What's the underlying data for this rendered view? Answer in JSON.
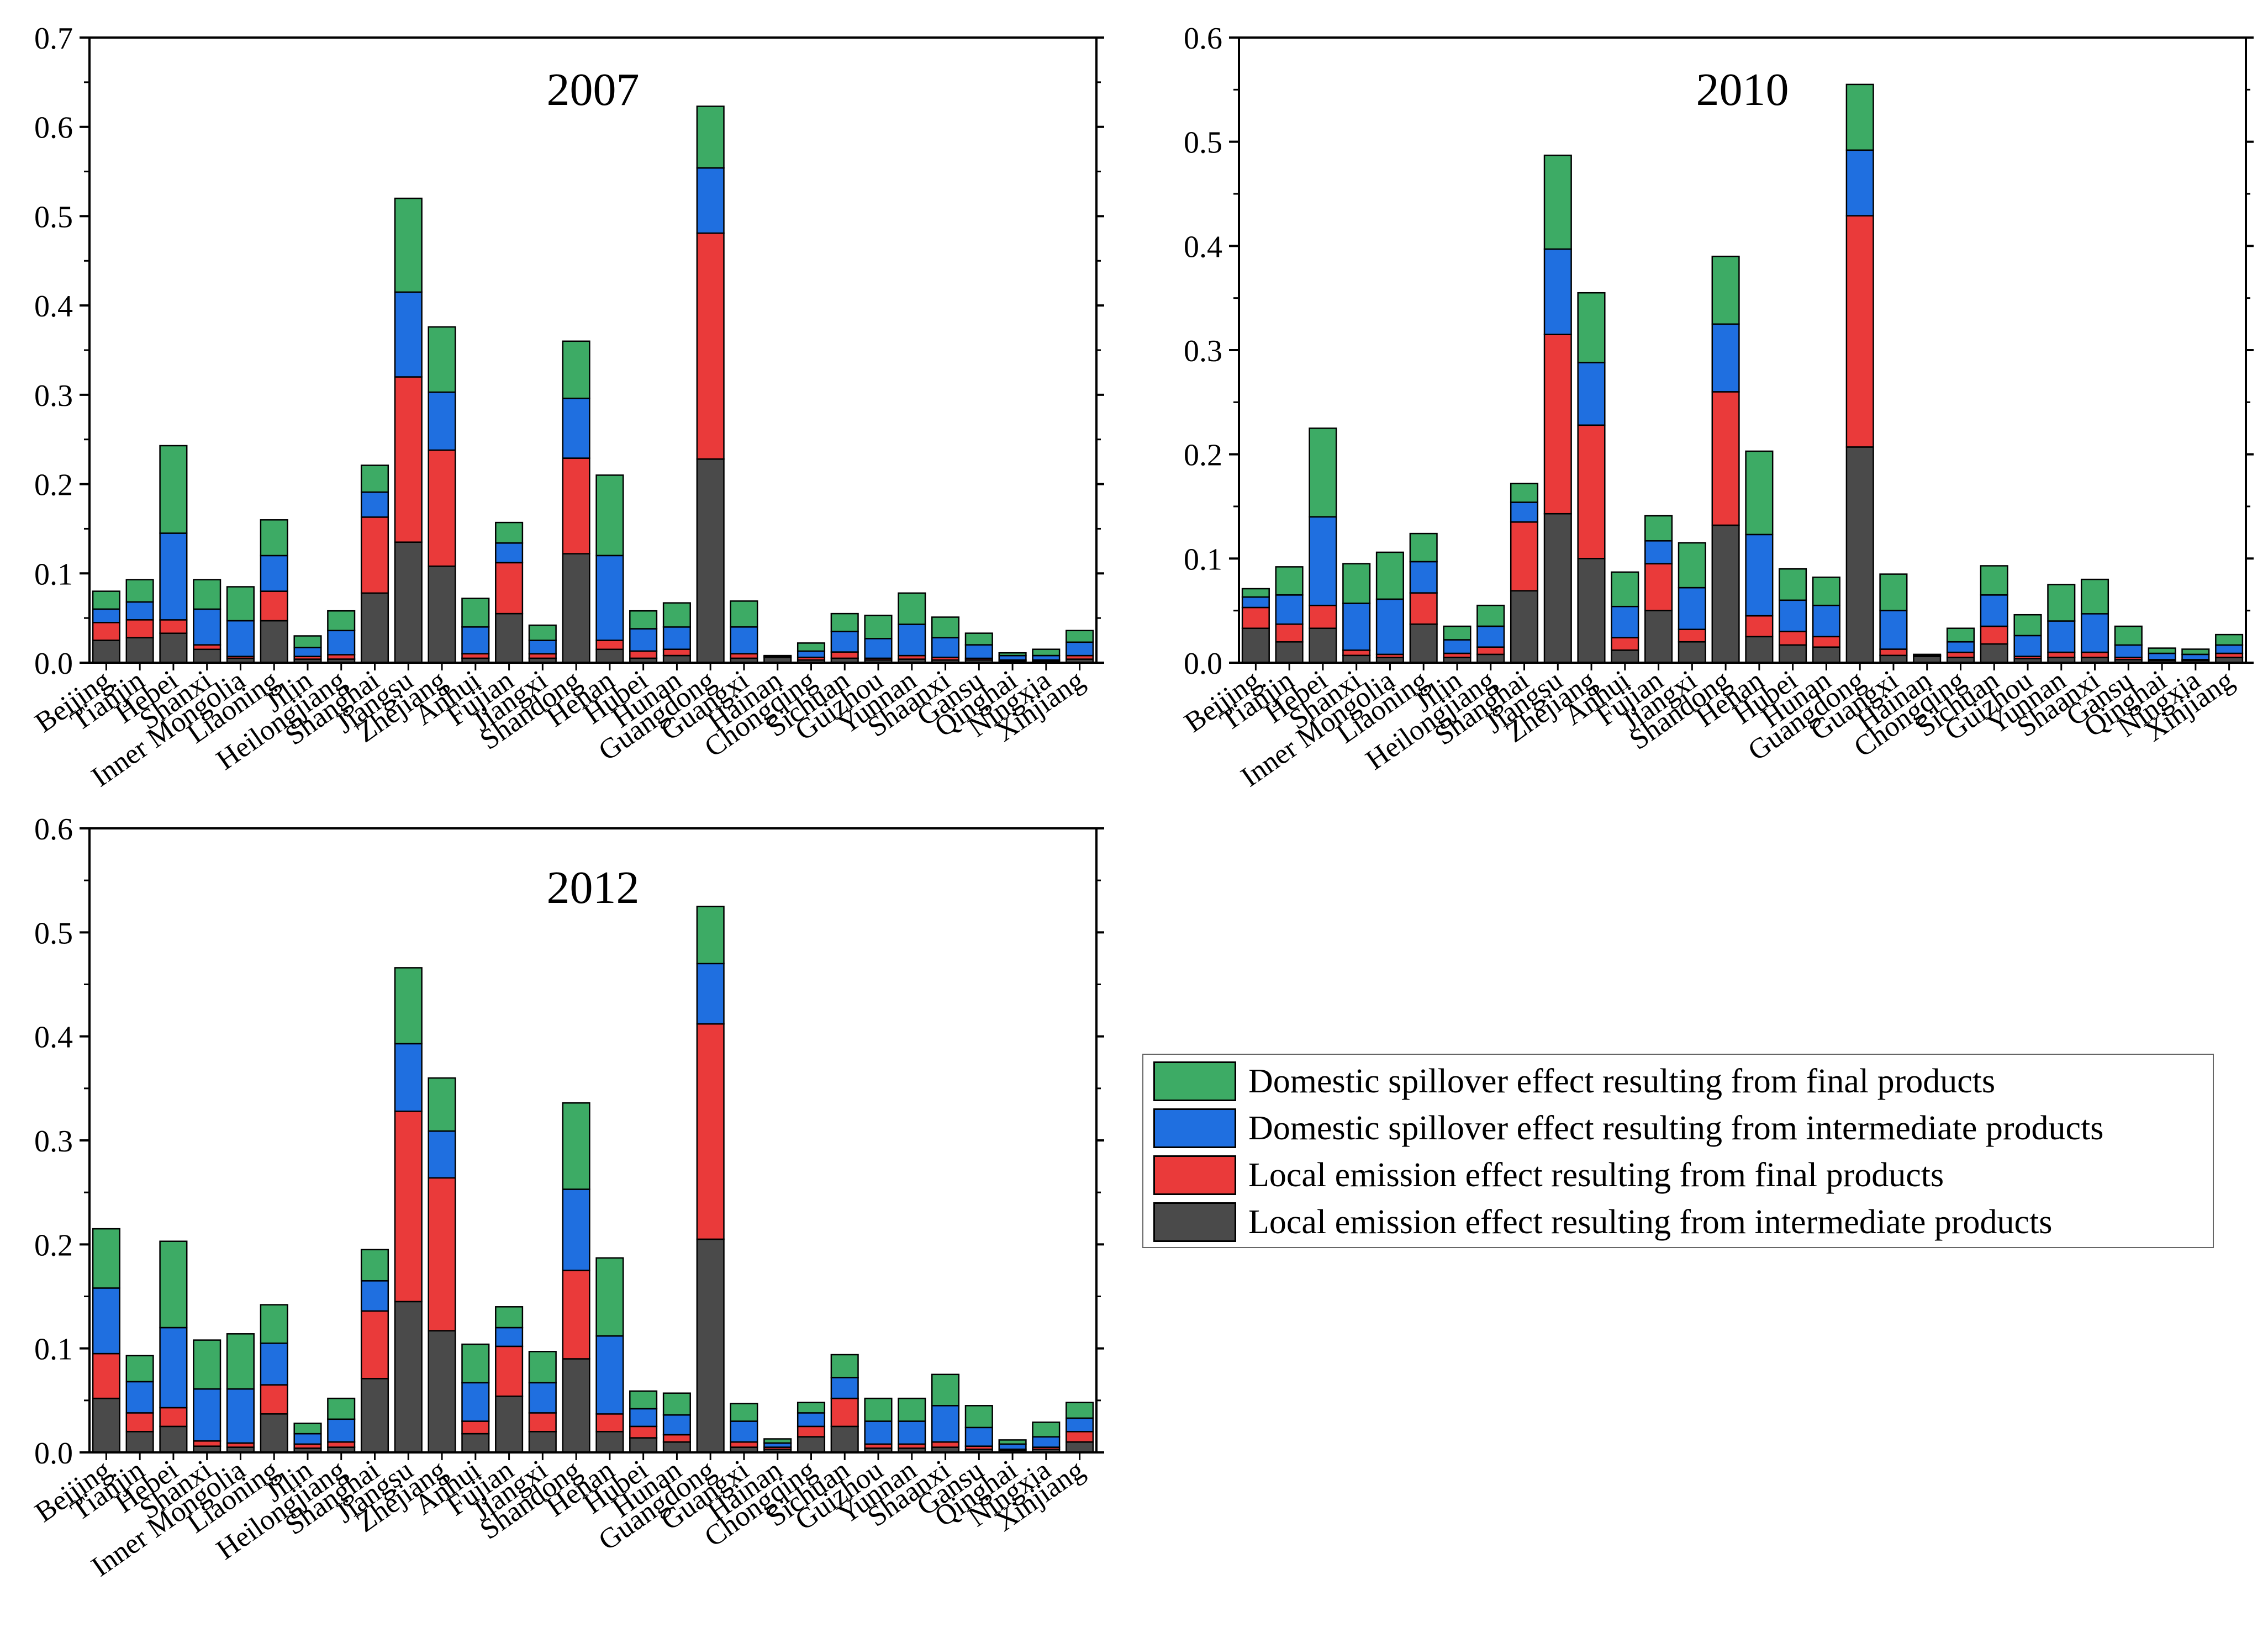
{
  "legend": [
    {
      "label": "Domestic spillover effect resulting from final products",
      "color": "#3dab65"
    },
    {
      "label": "Domestic spillover effect resulting from intermediate products",
      "color": "#1f6fe0"
    },
    {
      "label": "Local emission effect resulting from final products",
      "color": "#ea3a3a"
    },
    {
      "label": "Local emission effect resulting from intermediate products",
      "color": "#4a4a4a"
    }
  ],
  "chart_data": [
    {
      "type": "bar",
      "stacked": true,
      "title": "2007",
      "ylim": [
        0,
        0.7
      ],
      "yticks": [
        "0.0",
        "0.1",
        "0.2",
        "0.3",
        "0.4",
        "0.5",
        "0.6",
        "0.7"
      ],
      "categories": [
        "Beijing",
        "Tianjin",
        "Hebei",
        "Shanxi",
        "Inner Mongolia",
        "Liaoning",
        "Jilin",
        "Heilongjiang",
        "Shanghai",
        "Jiangsu",
        "Zhejiang",
        "Anhui",
        "Fujian",
        "Jiangxi",
        "Shandong",
        "Henan",
        "Hubei",
        "Hunan",
        "Guangdong",
        "Guangxi",
        "Hainan",
        "Chongqing",
        "Sichuan",
        "Guizhou",
        "Yunnan",
        "Shaanxi",
        "Gansu",
        "Qinghai",
        "Ningxia",
        "Xinjiang"
      ],
      "series": [
        {
          "name": "Local emission effect resulting from intermediate products",
          "color": "#4a4a4a",
          "values": [
            0.025,
            0.028,
            0.033,
            0.015,
            0.005,
            0.047,
            0.004,
            0.004,
            0.078,
            0.135,
            0.108,
            0.005,
            0.055,
            0.005,
            0.122,
            0.015,
            0.005,
            0.008,
            0.228,
            0.005,
            0.006,
            0.003,
            0.005,
            0.003,
            0.004,
            0.003,
            0.003,
            0.002,
            0.002,
            0.004
          ]
        },
        {
          "name": "Local emission effect resulting from final products",
          "color": "#ea3a3a",
          "values": [
            0.02,
            0.02,
            0.015,
            0.005,
            0.002,
            0.033,
            0.003,
            0.005,
            0.085,
            0.185,
            0.13,
            0.005,
            0.057,
            0.005,
            0.107,
            0.01,
            0.008,
            0.007,
            0.253,
            0.005,
            0.001,
            0.003,
            0.007,
            0.002,
            0.004,
            0.003,
            0.002,
            0.001,
            0.001,
            0.004
          ]
        },
        {
          "name": "Domestic spillover effect resulting from intermediate products",
          "color": "#1f6fe0",
          "values": [
            0.015,
            0.02,
            0.097,
            0.04,
            0.04,
            0.04,
            0.01,
            0.027,
            0.028,
            0.095,
            0.065,
            0.03,
            0.022,
            0.015,
            0.067,
            0.095,
            0.025,
            0.025,
            0.073,
            0.03,
            0.001,
            0.007,
            0.023,
            0.022,
            0.035,
            0.022,
            0.015,
            0.005,
            0.005,
            0.015
          ]
        },
        {
          "name": "Domestic spillover effect resulting from final products",
          "color": "#3dab65",
          "values": [
            0.02,
            0.025,
            0.098,
            0.033,
            0.038,
            0.04,
            0.013,
            0.022,
            0.03,
            0.105,
            0.073,
            0.032,
            0.023,
            0.017,
            0.064,
            0.09,
            0.02,
            0.027,
            0.069,
            0.029,
            0.0,
            0.009,
            0.02,
            0.026,
            0.035,
            0.023,
            0.013,
            0.003,
            0.007,
            0.013
          ]
        }
      ]
    },
    {
      "type": "bar",
      "stacked": true,
      "title": "2010",
      "ylim": [
        0,
        0.6
      ],
      "yticks": [
        "0.0",
        "0.1",
        "0.2",
        "0.3",
        "0.4",
        "0.5",
        "0.6"
      ],
      "categories": [
        "Beijing",
        "Tianjin",
        "Hebei",
        "Shanxi",
        "Inner Mongolia",
        "Liaoning",
        "Jilin",
        "Heilongjiang",
        "Shanghai",
        "Jiangsu",
        "Zhejiang",
        "Anhui",
        "Fujian",
        "Jiangxi",
        "Shandong",
        "Henan",
        "Hubei",
        "Hunan",
        "Guangdong",
        "Guangxi",
        "Hainan",
        "Chongqing",
        "Sichuan",
        "Guizhou",
        "Yunnan",
        "Shaanxi",
        "Gansu",
        "Qinghai",
        "Ningxia",
        "Xinjiang"
      ],
      "series": [
        {
          "name": "Local emission effect resulting from intermediate products",
          "color": "#4a4a4a",
          "values": [
            0.033,
            0.02,
            0.033,
            0.007,
            0.005,
            0.037,
            0.005,
            0.008,
            0.069,
            0.143,
            0.1,
            0.012,
            0.05,
            0.02,
            0.132,
            0.025,
            0.017,
            0.015,
            0.207,
            0.007,
            0.006,
            0.005,
            0.018,
            0.004,
            0.005,
            0.005,
            0.003,
            0.002,
            0.002,
            0.005
          ]
        },
        {
          "name": "Local emission effect resulting from final products",
          "color": "#ea3a3a",
          "values": [
            0.02,
            0.017,
            0.022,
            0.005,
            0.003,
            0.03,
            0.004,
            0.007,
            0.066,
            0.172,
            0.128,
            0.012,
            0.045,
            0.012,
            0.128,
            0.02,
            0.013,
            0.01,
            0.222,
            0.006,
            0.001,
            0.005,
            0.017,
            0.002,
            0.005,
            0.005,
            0.002,
            0.001,
            0.001,
            0.004
          ]
        },
        {
          "name": "Domestic spillover effect resulting from intermediate products",
          "color": "#1f6fe0",
          "values": [
            0.01,
            0.028,
            0.085,
            0.045,
            0.053,
            0.03,
            0.013,
            0.02,
            0.019,
            0.082,
            0.06,
            0.03,
            0.022,
            0.04,
            0.065,
            0.078,
            0.03,
            0.03,
            0.063,
            0.037,
            0.001,
            0.01,
            0.03,
            0.02,
            0.03,
            0.037,
            0.012,
            0.006,
            0.005,
            0.008
          ]
        },
        {
          "name": "Domestic spillover effect resulting from final products",
          "color": "#3dab65",
          "values": [
            0.008,
            0.027,
            0.085,
            0.038,
            0.045,
            0.027,
            0.013,
            0.02,
            0.018,
            0.09,
            0.067,
            0.033,
            0.024,
            0.043,
            0.065,
            0.08,
            0.03,
            0.027,
            0.063,
            0.035,
            0.0,
            0.013,
            0.028,
            0.02,
            0.035,
            0.033,
            0.018,
            0.005,
            0.005,
            0.01
          ]
        }
      ]
    },
    {
      "type": "bar",
      "stacked": true,
      "title": "2012",
      "ylim": [
        0,
        0.6
      ],
      "yticks": [
        "0.0",
        "0.1",
        "0.2",
        "0.3",
        "0.4",
        "0.5",
        "0.6"
      ],
      "categories": [
        "Beijing",
        "Tianjin",
        "Hebei",
        "Shanxi",
        "Inner Mongolia",
        "Liaoning",
        "Jilin",
        "Heilongjiang",
        "Shanghai",
        "Jiangsu",
        "Zhejiang",
        "Anhui",
        "Fujian",
        "Jiangxi",
        "Shandong",
        "Henan",
        "Hubei",
        "Hunan",
        "Guangdong",
        "Guangxi",
        "Hainan",
        "Chongqing",
        "Sichuan",
        "Guizhou",
        "Yunnan",
        "Shaanxi",
        "Gansu",
        "Qinghai",
        "Ningxia",
        "Xinjiang"
      ],
      "series": [
        {
          "name": "Local emission effect resulting from intermediate products",
          "color": "#4a4a4a",
          "values": [
            0.052,
            0.02,
            0.025,
            0.006,
            0.005,
            0.037,
            0.004,
            0.005,
            0.071,
            0.145,
            0.117,
            0.018,
            0.054,
            0.02,
            0.09,
            0.02,
            0.014,
            0.01,
            0.205,
            0.005,
            0.003,
            0.015,
            0.025,
            0.004,
            0.004,
            0.005,
            0.003,
            0.002,
            0.003,
            0.01
          ]
        },
        {
          "name": "Local emission effect resulting from final products",
          "color": "#ea3a3a",
          "values": [
            0.043,
            0.018,
            0.018,
            0.005,
            0.004,
            0.028,
            0.004,
            0.005,
            0.065,
            0.183,
            0.147,
            0.012,
            0.048,
            0.018,
            0.085,
            0.017,
            0.011,
            0.007,
            0.207,
            0.005,
            0.002,
            0.01,
            0.027,
            0.004,
            0.004,
            0.005,
            0.003,
            0.001,
            0.002,
            0.01
          ]
        },
        {
          "name": "Domestic spillover effect resulting from intermediate products",
          "color": "#1f6fe0",
          "values": [
            0.063,
            0.03,
            0.077,
            0.05,
            0.052,
            0.04,
            0.01,
            0.022,
            0.029,
            0.065,
            0.045,
            0.037,
            0.018,
            0.029,
            0.078,
            0.075,
            0.017,
            0.019,
            0.058,
            0.02,
            0.004,
            0.013,
            0.02,
            0.022,
            0.022,
            0.035,
            0.018,
            0.005,
            0.01,
            0.013
          ]
        },
        {
          "name": "Domestic spillover effect resulting from final products",
          "color": "#3dab65",
          "values": [
            0.057,
            0.025,
            0.083,
            0.047,
            0.053,
            0.037,
            0.01,
            0.02,
            0.03,
            0.073,
            0.051,
            0.037,
            0.02,
            0.03,
            0.083,
            0.075,
            0.017,
            0.021,
            0.055,
            0.017,
            0.004,
            0.01,
            0.022,
            0.022,
            0.022,
            0.03,
            0.021,
            0.004,
            0.014,
            0.015
          ]
        }
      ]
    }
  ]
}
